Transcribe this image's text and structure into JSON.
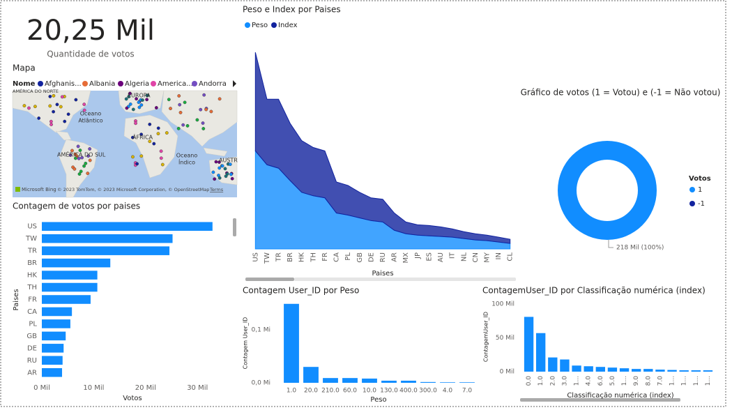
{
  "kpi": {
    "value": "20,25 Mil",
    "label": "Quantidade de votos"
  },
  "map": {
    "title": "Mapa",
    "legend_title": "Nome",
    "legend_items": [
      {
        "name": "Afghanis...",
        "color": "#12239e"
      },
      {
        "name": "Albania",
        "color": "#e66c37"
      },
      {
        "name": "Algeria",
        "color": "#6b007b"
      },
      {
        "name": "America...",
        "color": "#e044a7"
      },
      {
        "name": "Andorra",
        "color": "#744ec2"
      }
    ],
    "labels": [
      "AMÉRICA DO NORTE",
      "EUROPA",
      "Oceano",
      "Atlântico",
      "ÁFRICA",
      "AMÉRICA DO SUL",
      "Oceano",
      "Índico",
      "AUSTR"
    ],
    "attribution": "Microsoft Bing",
    "copyright": "© 2023 TomTom, © 2023 Microsoft Corporation, © OpenStreetMap",
    "terms": "Terms"
  },
  "chart_data": [
    {
      "type": "hbar",
      "title": "Contagem de votos por paises",
      "x_label": "Votos",
      "y_label": "Paises",
      "categories": [
        "US",
        "TW",
        "TR",
        "BR",
        "HK",
        "TH",
        "FR",
        "CA",
        "PL",
        "GB",
        "DE",
        "RU",
        "AR"
      ],
      "values": [
        32900,
        25200,
        24600,
        13200,
        10700,
        10700,
        9400,
        5800,
        5500,
        4600,
        4200,
        4000,
        3900
      ],
      "color": "#118dff",
      "xlim": [
        0,
        34000
      ],
      "xticks": [
        {
          "value": 0,
          "label": "0 Mil"
        },
        {
          "value": 10000,
          "label": "10 Mil"
        },
        {
          "value": 20000,
          "label": "20 Mil"
        },
        {
          "value": 30000,
          "label": "30 Mil"
        }
      ]
    },
    {
      "type": "area",
      "stacked": true,
      "title": "Peso e Index por Paises",
      "x_label": "Paises",
      "categories": [
        "US",
        "TW",
        "TR",
        "BR",
        "HK",
        "TH",
        "FR",
        "CA",
        "PL",
        "GB",
        "DE",
        "RU",
        "AR",
        "MX",
        "JP",
        "ES",
        "AU",
        "IT",
        "NL",
        "CN",
        "MY",
        "IN",
        "CL"
      ],
      "series": [
        {
          "name": "Peso",
          "color": "#118dff",
          "values": [
            142,
            122,
            117,
            99,
            82,
            77,
            74,
            52,
            49,
            45,
            41,
            39,
            27,
            22,
            20,
            19,
            18,
            17,
            15,
            13,
            12,
            10,
            8
          ]
        },
        {
          "name": "Index",
          "color": "#12239e",
          "values": [
            143,
            95,
            100,
            83,
            75,
            70,
            68,
            45,
            43,
            37,
            33,
            33,
            25,
            17,
            15,
            15,
            14,
            12,
            10,
            9,
            8,
            7,
            6
          ]
        }
      ],
      "ylim": [
        0,
        290
      ]
    },
    {
      "type": "donut",
      "title": "Gráfico de votos (1 = Votou) e (-1 = Não votou)",
      "legend_title": "Votos",
      "categories": [
        "1",
        "-1"
      ],
      "values": [
        218000,
        0
      ],
      "value_labels": [
        "218 Mil (100%)",
        null
      ],
      "colors": [
        "#118dff",
        "#12239e"
      ]
    },
    {
      "type": "bar",
      "title": "Contagem User_ID por Peso",
      "x_label": "Peso",
      "y_label": "Contagem User_ID",
      "categories": [
        "1.0",
        "20.0",
        "210.0",
        "60.0",
        "10.0",
        "130.0",
        "400.0",
        "300.0",
        "4.0",
        "7.0"
      ],
      "values": [
        149000,
        30000,
        9000,
        9000,
        8000,
        4000,
        4000,
        1500,
        1000,
        1000
      ],
      "color": "#118dff",
      "ylim": [
        0,
        150000
      ],
      "yticks": [
        {
          "value": 0,
          "label": "0,0 Mi"
        },
        {
          "value": 100000,
          "label": "0,1 Mi"
        }
      ]
    },
    {
      "type": "bar",
      "title": "ContagemUser_ID por Classificação numérica (index)",
      "x_label": "Classificação numérica (index)",
      "y_label": "ContagemUser_ID",
      "categories": [
        "0.0",
        "1.0",
        "2.0",
        "3.0",
        "1...",
        "4.0",
        "6.0",
        "5.0",
        "1...",
        "9.0",
        "8.0",
        "7.0",
        "1...",
        "1...",
        "1...",
        "1..."
      ],
      "values": [
        81000,
        57000,
        21000,
        18000,
        9000,
        8000,
        7000,
        6000,
        5000,
        4000,
        4000,
        3000,
        2500,
        2000,
        2000,
        2000
      ],
      "color": "#118dff",
      "ylim": [
        0,
        100000
      ],
      "yticks": [
        {
          "value": 0,
          "label": "0 Mil"
        },
        {
          "value": 50000,
          "label": "50 Mil"
        },
        {
          "value": 100000,
          "label": "100 Mil"
        }
      ]
    }
  ]
}
